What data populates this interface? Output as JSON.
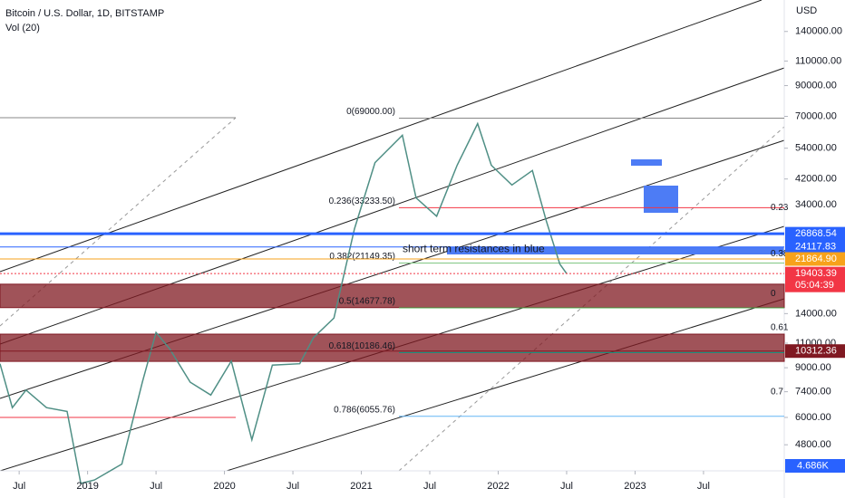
{
  "chart_data": {
    "type": "line",
    "title": "Bitcoin / U.S. Dollar, 1D, BITSTAMP",
    "subtitle": "Vol (20)",
    "currency": "USD",
    "log_scale": true,
    "xlim": [
      2018.36,
      2024.09
    ],
    "ylim": [
      3880,
      181000
    ],
    "xticks": [
      {
        "value": 2018.5,
        "label": "Jul"
      },
      2019,
      {
        "value": 2019.5,
        "label": "Jul"
      },
      2020,
      {
        "value": 2020.5,
        "label": "Jul"
      },
      2021,
      {
        "value": 2021.5,
        "label": "Jul"
      },
      2022,
      {
        "value": 2022.5,
        "label": "Jul"
      },
      2023,
      {
        "value": 2023.5,
        "label": "Jul"
      }
    ],
    "yticks": [
      {
        "value": 140000,
        "label": "140000.00"
      },
      {
        "value": 110000,
        "label": "110000.00"
      },
      {
        "value": 90000,
        "label": "90000.00"
      },
      {
        "value": 70000,
        "label": "70000.00"
      },
      {
        "value": 54000,
        "label": "54000.00"
      },
      {
        "value": 42000,
        "label": "42000.00"
      },
      {
        "value": 34000,
        "label": "34000.00"
      },
      {
        "value": 14000,
        "label": "14000.00"
      },
      {
        "value": 11000,
        "label": "11000.00"
      },
      {
        "value": 9000,
        "label": "9000.00"
      },
      {
        "value": 7400,
        "label": "7400.00"
      },
      {
        "value": 6000,
        "label": "6000.00"
      },
      {
        "value": 4800,
        "label": "4800.00"
      }
    ],
    "series": [
      {
        "name": "BTCUSD",
        "color": "#4f8f85",
        "x": [
          2018.36,
          2018.45,
          2018.55,
          2018.7,
          2018.85,
          2018.95,
          2019.05,
          2019.25,
          2019.4,
          2019.5,
          2019.6,
          2019.75,
          2019.9,
          2020.05,
          2020.2,
          2020.35,
          2020.55,
          2020.65,
          2020.8,
          2020.95,
          2021.1,
          2021.3,
          2021.4,
          2021.55,
          2021.7,
          2021.85,
          2021.95,
          2022.1,
          2022.25,
          2022.35,
          2022.45,
          2022.5
        ],
        "values": [
          9300,
          6500,
          7500,
          6500,
          6300,
          3500,
          3600,
          4100,
          8000,
          12000,
          10500,
          8000,
          7200,
          9500,
          5000,
          9200,
          9300,
          11500,
          13500,
          28000,
          48000,
          60000,
          36000,
          31000,
          47000,
          66000,
          47000,
          40000,
          45000,
          30000,
          21000,
          19400
        ]
      }
    ],
    "price_badges": [
      {
        "value": 26868.54,
        "label": "26868.54",
        "color": "#2962ff"
      },
      {
        "value": 24117.83,
        "label": "24117.83",
        "color": "#2962ff"
      },
      {
        "value": 21864.9,
        "label": "21864.90",
        "color": "#f7a21b"
      },
      {
        "value": 19403.39,
        "label": "19403.39",
        "color": "#f23645",
        "timer": "05:04:39"
      },
      {
        "value": 10312.36,
        "label": "10312.36",
        "color": "#801922"
      }
    ],
    "volume_label": "4.686K",
    "zones": [
      [
        14700,
        17800
      ],
      [
        9480,
        11840
      ]
    ],
    "fib_levels": [
      {
        "value": 69000,
        "label": "0(69000.00)",
        "color": "#888888"
      },
      {
        "value": 33233.5,
        "label": "0.236(33233.50)",
        "color": "#f23645"
      },
      {
        "value": 21149.35,
        "label": "0.382(21149.35)",
        "color": "#81c784"
      },
      {
        "value": 14677.78,
        "label": "0.5(14677.78)",
        "color": "#4caf50"
      },
      {
        "value": 10186.46,
        "label": "0.618(10186.46)",
        "color": "#089981"
      },
      {
        "value": 6055.76,
        "label": "0.786(6055.76)",
        "color": "#64b5f6"
      }
    ],
    "clipped_labels": [
      {
        "value": 33233.5,
        "label": "0.23",
        "color": "#f23645"
      },
      {
        "value": 22800,
        "label": "0.38",
        "color": "#81c784"
      },
      {
        "value": 16500,
        "label": "0",
        "color": "#787b86"
      },
      {
        "value": 12500,
        "label": "0.61",
        "color": "#089981"
      },
      {
        "value": 7400,
        "label": "0.7",
        "color": "#64b5f6"
      }
    ],
    "annotation": {
      "text": "short term resistances in blue",
      "value": 23500
    }
  }
}
